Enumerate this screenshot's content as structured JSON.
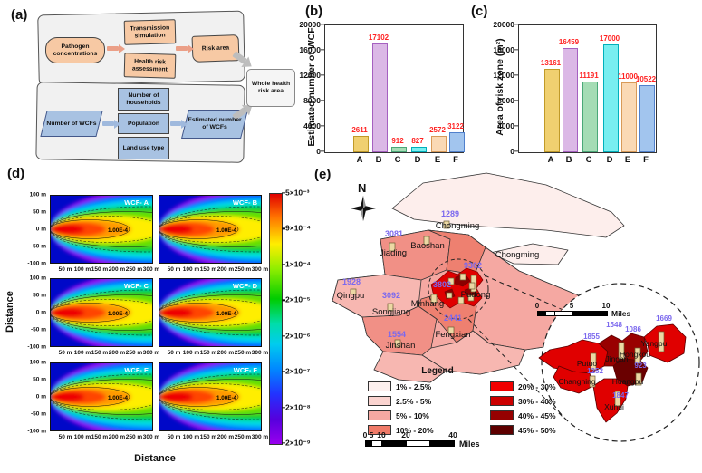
{
  "labels": {
    "a": "(a)",
    "b": "(b)",
    "c": "(c)",
    "d": "(d)",
    "e": "(e)"
  },
  "flowchart": {
    "pathogen": "Pathogen concentrations",
    "transmission": "Transmission simulation",
    "health_risk": "Health risk assessment",
    "risk_area": "Risk area",
    "whole_area": "Whole health risk area",
    "num_wcfs": "Number of WCFs",
    "households": "Number of households",
    "population": "Population",
    "land_use": "Land use type",
    "est_wcfs": "Estimated number of WCFs"
  },
  "chart_data": [
    {
      "type": "bar",
      "panel": "b",
      "title": "",
      "ylabel": "Estimated number of WCF",
      "xlabel": "",
      "categories": [
        "A",
        "B",
        "C",
        "D",
        "E",
        "F"
      ],
      "values": [
        2611,
        17102,
        912,
        827,
        2572,
        3122
      ],
      "ylim": [
        0,
        20000
      ],
      "yticks": [
        0,
        4000,
        8000,
        12000,
        16000,
        20000
      ],
      "bar_colors": [
        "#f0d070",
        "#dbb8e6",
        "#a5dcb5",
        "#78eef0",
        "#fad9b5",
        "#a2c5ee"
      ],
      "bar_borders": [
        "#c09a28",
        "#a560c0",
        "#4aa878",
        "#00b0bb",
        "#d89a58",
        "#5080cc"
      ],
      "value_label_color": "#ff2222",
      "grid": false,
      "legend": "none"
    },
    {
      "type": "bar",
      "panel": "c",
      "title": "",
      "ylabel": "Area of risk zone (m²)",
      "xlabel": "",
      "categories": [
        "A",
        "B",
        "C",
        "D",
        "E",
        "F"
      ],
      "values": [
        13161,
        16459,
        11191,
        17000,
        11000,
        10522
      ],
      "ylim": [
        0,
        20000
      ],
      "yticks": [
        0,
        4000,
        8000,
        12000,
        16000,
        20000
      ],
      "bar_colors": [
        "#f0d070",
        "#dbb8e6",
        "#a5dcb5",
        "#78eef0",
        "#fad9b5",
        "#a2c5ee"
      ],
      "bar_borders": [
        "#c09a28",
        "#a560c0",
        "#4aa878",
        "#00b0bb",
        "#d89a58",
        "#5080cc"
      ],
      "value_label_color": "#ff2222",
      "grid": false,
      "legend": "none"
    }
  ],
  "panel_d": {
    "ylabel": "Distance",
    "xlabel": "Distance",
    "plots": [
      {
        "name": "WCF- A",
        "contour_label": "1.00E-4"
      },
      {
        "name": "WCF- B",
        "contour_label": "1.00E-4"
      },
      {
        "name": "WCF- C",
        "contour_label": "1.00E-4"
      },
      {
        "name": "WCF- D",
        "contour_label": "1.00E-4"
      },
      {
        "name": "WCF- E",
        "contour_label": "1.00E-4"
      },
      {
        "name": "WCF- F",
        "contour_label": "1.00E-4"
      }
    ],
    "yticks": [
      "100 m",
      "50 m",
      "0 m",
      "-50 m",
      "-100 m"
    ],
    "xticks": [
      "50 m",
      "100 m",
      "150 m",
      "200 m",
      "250 m",
      "300 m"
    ],
    "colorbar_labels": [
      "5×10⁻³",
      "9×10⁻⁴",
      "1×10⁻⁴",
      "2×10⁻⁵",
      "2×10⁻⁶",
      "2×10⁻⁷",
      "2×10⁻⁸",
      "2×10⁻⁹"
    ]
  },
  "map": {
    "compass": "N",
    "value_color": "#7b68ee",
    "districts": [
      {
        "name": "Chongming",
        "value": "1289"
      },
      {
        "name": "Jiading",
        "value": "3081"
      },
      {
        "name": "Baoshan",
        "value": ""
      },
      {
        "name": "Qingpu",
        "value": "1928"
      },
      {
        "name": "Songjiang",
        "value": "3092"
      },
      {
        "name": "Minhang",
        "value": "3802"
      },
      {
        "name": "Pudong",
        "value": "9302"
      },
      {
        "name": "Fengxian",
        "value": "2441"
      },
      {
        "name": "Jinshan",
        "value": "1554"
      },
      {
        "name": "Chongming",
        "value": ""
      }
    ],
    "inset_districts": [
      {
        "name": "Putuo",
        "value": "1855"
      },
      {
        "name": "Jingan",
        "value": "1548"
      },
      {
        "name": "Hongkou",
        "value": "1086"
      },
      {
        "name": "Yangpu",
        "value": "1669"
      },
      {
        "name": "Changning",
        "value": "1252"
      },
      {
        "name": "Huangpu",
        "value": "923"
      },
      {
        "name": "Xuhui",
        "value": "1847"
      }
    ],
    "legend": {
      "title": "Legend",
      "items": [
        {
          "label": "1% - 2.5%",
          "color": "#fdf0ee"
        },
        {
          "label": "2.5% - 5%",
          "color": "#fad3cf"
        },
        {
          "label": "5% - 10%",
          "color": "#f5a8a2"
        },
        {
          "label": "10% - 20%",
          "color": "#ef7a68"
        },
        {
          "label": "20% - 30%",
          "color": "#f00000"
        },
        {
          "label": "30% - 40%",
          "color": "#cc0000"
        },
        {
          "label": "40% - 45%",
          "color": "#960000"
        },
        {
          "label": "45% - 50%",
          "color": "#5e0000"
        }
      ]
    },
    "scalebar": {
      "ticks": [
        "0",
        "5",
        "10",
        "20",
        "40"
      ],
      "unit": "Miles"
    },
    "inset_scalebar": {
      "ticks": [
        "0",
        "5",
        "10"
      ],
      "unit": "Miles"
    }
  }
}
